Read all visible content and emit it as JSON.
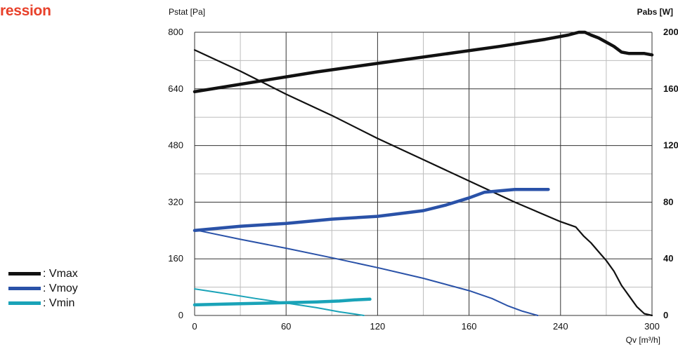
{
  "title": "ression",
  "legend": [
    {
      "label": ": Vmax",
      "color": "#111111"
    },
    {
      "label": ": Vmoy",
      "color": "#2a52a8"
    },
    {
      "label": ": Vmin",
      "color": "#1aa3b8"
    }
  ],
  "chart_data": {
    "type": "line",
    "ylabel_left": "Pstat [Pa]",
    "ylabel_right": "Pabs [W]",
    "xlabel": "Qv [m³/h]",
    "x_tick_labels": [
      "0",
      "60",
      "120",
      "160",
      "240",
      "300"
    ],
    "y_left_tick_labels": [
      "0",
      "160",
      "320",
      "480",
      "640",
      "800"
    ],
    "y_right_tick_labels": [
      "0",
      "40",
      "80",
      "120",
      "160",
      "200"
    ],
    "xlim": [
      0,
      300
    ],
    "ylim_left": [
      0,
      800
    ],
    "ylim_right": [
      0,
      200
    ],
    "grid": true,
    "series": [
      {
        "legend": "Vmax",
        "quantity": "Pstat",
        "axis": "left",
        "color": "#111111",
        "width": 2.2,
        "x": [
          0,
          30,
          60,
          90,
          120,
          150,
          180,
          210,
          240,
          250,
          255,
          260,
          265,
          270,
          275,
          280,
          285,
          290,
          295,
          300
        ],
        "y": [
          750,
          690,
          625,
          565,
          500,
          440,
          380,
          320,
          265,
          250,
          225,
          205,
          180,
          155,
          125,
          85,
          55,
          25,
          5,
          0
        ]
      },
      {
        "legend": "Vmax",
        "quantity": "Pabs",
        "axis": "right",
        "color": "#111111",
        "width": 4.5,
        "x": [
          0,
          40,
          80,
          120,
          160,
          200,
          230,
          245,
          252,
          256,
          260,
          265,
          270,
          275,
          280,
          285,
          290,
          295,
          300
        ],
        "y": [
          158,
          165,
          172,
          178,
          184,
          190,
          195,
          198,
          200,
          200,
          198,
          196,
          193,
          190,
          186,
          185,
          185,
          185,
          184
        ]
      },
      {
        "legend": "Vmoy",
        "quantity": "Pstat",
        "axis": "left",
        "color": "#2a52a8",
        "width": 2,
        "x": [
          0,
          30,
          60,
          90,
          120,
          150,
          180,
          195,
          205,
          215,
          225
        ],
        "y": [
          242,
          215,
          190,
          163,
          135,
          105,
          70,
          48,
          28,
          12,
          0
        ]
      },
      {
        "legend": "Vmoy",
        "quantity": "Pabs",
        "axis": "right",
        "color": "#2a52a8",
        "width": 4.5,
        "x": [
          0,
          30,
          60,
          90,
          120,
          150,
          165,
          180,
          190,
          200,
          210,
          220,
          232
        ],
        "y": [
          60,
          63,
          65,
          68,
          70,
          74,
          78,
          83,
          87,
          88,
          89,
          89,
          89
        ]
      },
      {
        "legend": "Vmin",
        "quantity": "Pstat",
        "axis": "left",
        "color": "#1aa3b8",
        "width": 2,
        "x": [
          0,
          20,
          40,
          60,
          80,
          95,
          105,
          111
        ],
        "y": [
          75,
          62,
          48,
          35,
          22,
          10,
          4,
          0
        ]
      },
      {
        "legend": "Vmin",
        "quantity": "Pabs",
        "axis": "right",
        "color": "#1aa3b8",
        "width": 4.5,
        "x": [
          0,
          20,
          40,
          60,
          80,
          95,
          105,
          115
        ],
        "y": [
          7.5,
          8,
          8.5,
          9,
          9.5,
          10.2,
          11,
          11.5
        ]
      }
    ]
  }
}
